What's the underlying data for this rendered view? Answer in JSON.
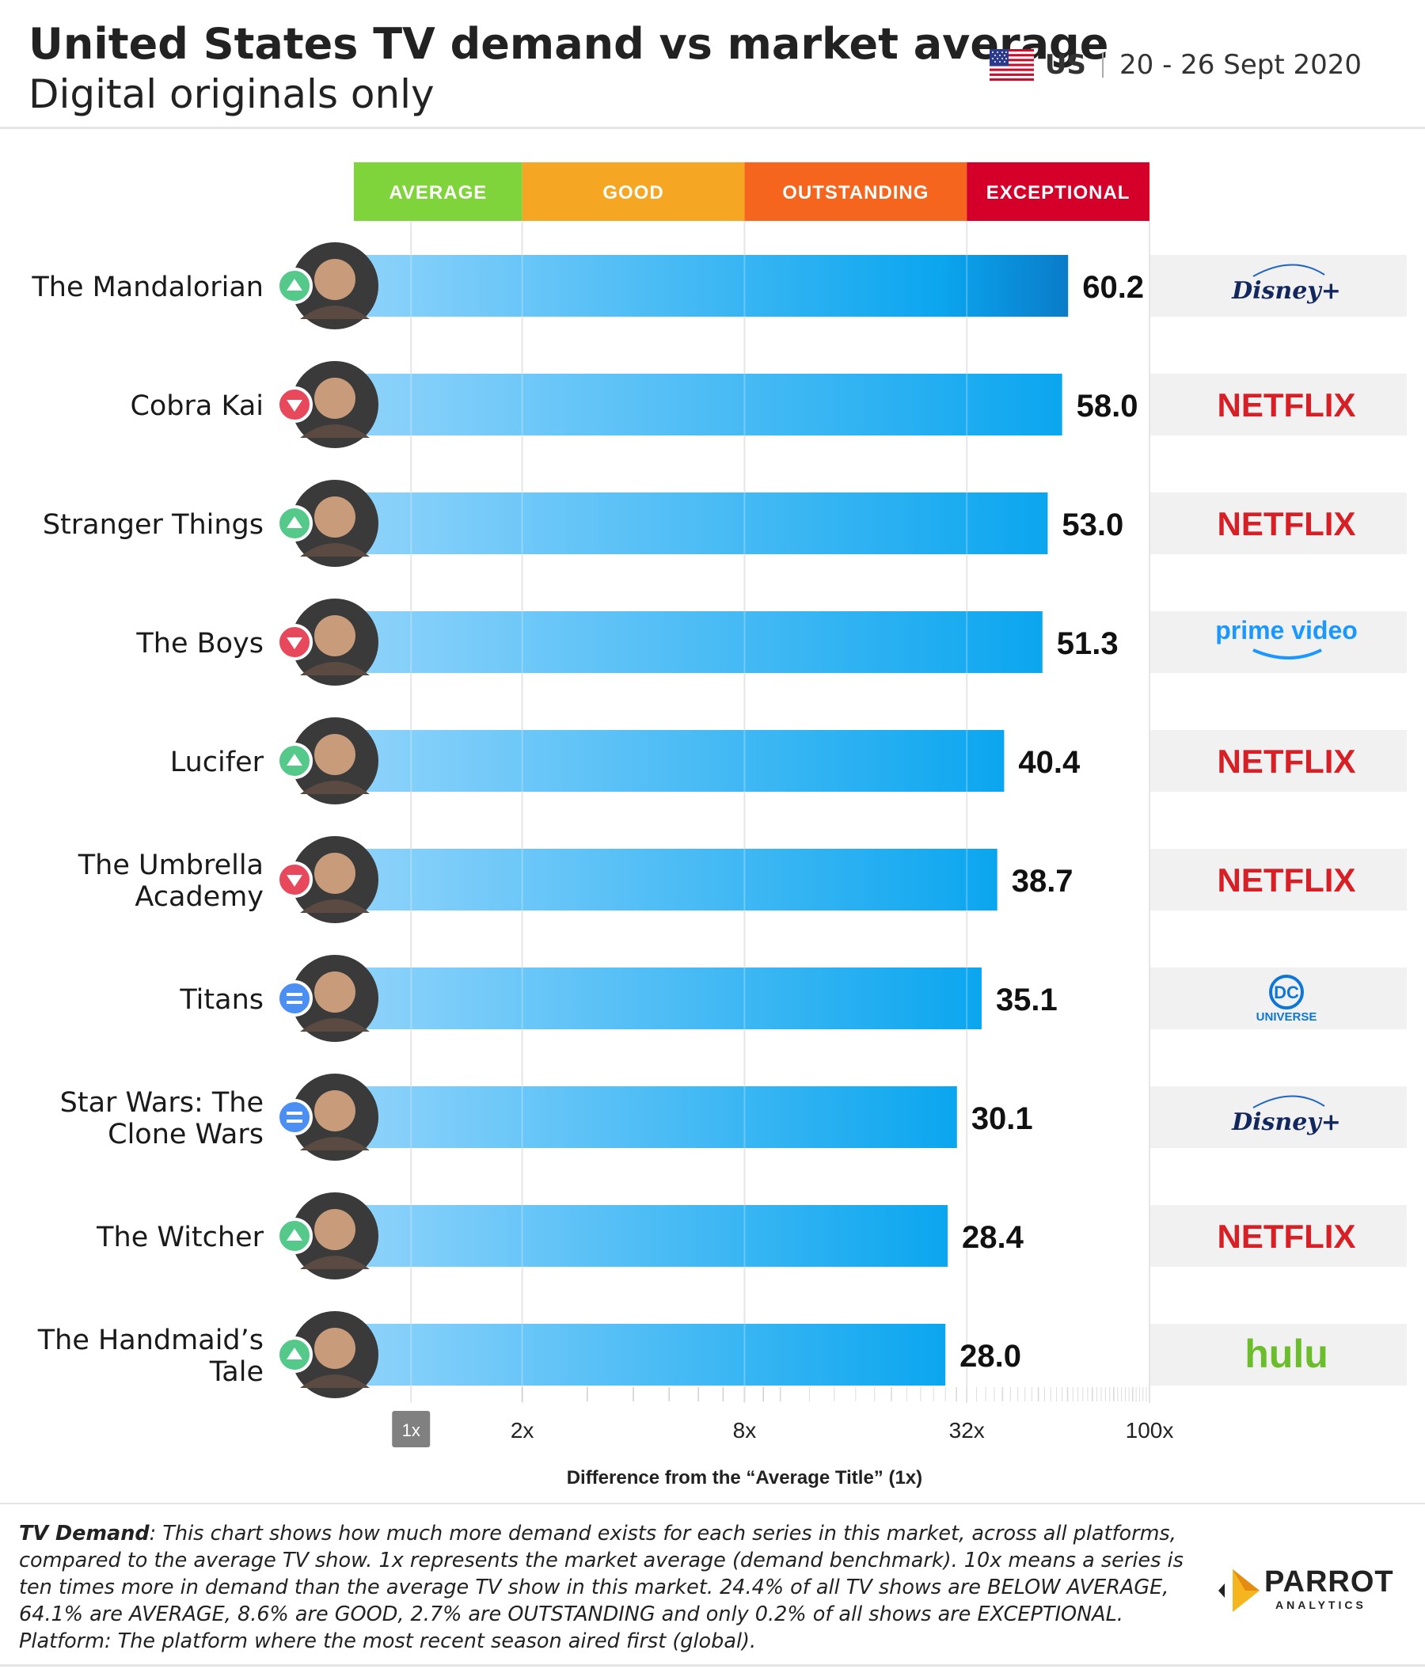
{
  "header": {
    "title": "United States TV demand vs market average",
    "subtitle": "Digital originals only",
    "country": "US",
    "date_range": "20 - 26 Sept 2020"
  },
  "categories_band": [
    {
      "label": "AVERAGE",
      "color": "#7ed43a",
      "from": 1,
      "to": 2
    },
    {
      "label": "GOOD",
      "color": "#f5a623",
      "from": 2,
      "to": 8
    },
    {
      "label": "OUTSTANDING",
      "color": "#f5651e",
      "from": 8,
      "to": 32
    },
    {
      "label": "EXCEPTIONAL",
      "color": "#d4002a",
      "from": 32,
      "to": 100
    }
  ],
  "platforms": {
    "disney": {
      "name": "Disney+",
      "color": "#13275f"
    },
    "netflix": {
      "name": "NETFLIX",
      "color": "#d81f26"
    },
    "prime": {
      "name": "prime video",
      "color": "#1a98ff"
    },
    "dc": {
      "name": "DC UNIVERSE",
      "color": "#0e76d6"
    },
    "hulu": {
      "name": "hulu",
      "color": "#6cbd2c"
    }
  },
  "chart_data": {
    "type": "bar",
    "orientation": "horizontal",
    "x_scale": "log",
    "xlabel": "Difference from the “Average Title” (1x)",
    "xlim": [
      0.7,
      100
    ],
    "x_ticks": [
      {
        "value": 1,
        "label": "1x"
      },
      {
        "value": 2,
        "label": "2x"
      },
      {
        "value": 8,
        "label": "8x"
      },
      {
        "value": 32,
        "label": "32x"
      },
      {
        "value": 100,
        "label": "100x"
      }
    ],
    "categories": [
      "The Mandalorian",
      "Cobra Kai",
      "Stranger Things",
      "The Boys",
      "Lucifer",
      "The Umbrella Academy",
      "Titans",
      "Star Wars: The Clone Wars",
      "The Witcher",
      "The Handmaid’s Tale"
    ],
    "label_lines": [
      [
        "The Mandalorian"
      ],
      [
        "Cobra Kai"
      ],
      [
        "Stranger Things"
      ],
      [
        "The Boys"
      ],
      [
        "Lucifer"
      ],
      [
        "The Umbrella",
        "Academy"
      ],
      [
        "Titans"
      ],
      [
        "Star Wars: The",
        "Clone Wars"
      ],
      [
        "The Witcher"
      ],
      [
        "The Handmaid’s",
        "Tale"
      ]
    ],
    "values": [
      60.2,
      58.0,
      53.0,
      51.3,
      40.4,
      38.7,
      35.1,
      30.1,
      28.4,
      28.0
    ],
    "value_labels": [
      "60.2",
      "58.0",
      "53.0",
      "51.3",
      "40.4",
      "38.7",
      "35.1",
      "30.1",
      "28.4",
      "28.0"
    ],
    "trend": [
      "up",
      "down",
      "up",
      "down",
      "up",
      "down",
      "same",
      "same",
      "up",
      "up"
    ],
    "platform": [
      "disney",
      "netflix",
      "netflix",
      "prime",
      "netflix",
      "netflix",
      "dc",
      "disney",
      "netflix",
      "hulu"
    ]
  },
  "footnote": {
    "lead": "TV Demand",
    "text": ": This chart shows how much more demand exists for each series in this market, across all platforms, compared to the average TV show. 1x represents the market average (demand benchmark). 10x means a series is ten times more in demand than the average TV show in this market. 24.4% of all TV shows are BELOW AVERAGE, 64.1% are AVERAGE, 8.6% are GOOD, 2.7% are OUTSTANDING and only 0.2% of all shows are EXCEPTIONAL. Platform: The platform where the most recent season aired first (global)."
  },
  "brand": {
    "name": "PARROT",
    "sub": "ANALYTICS"
  }
}
